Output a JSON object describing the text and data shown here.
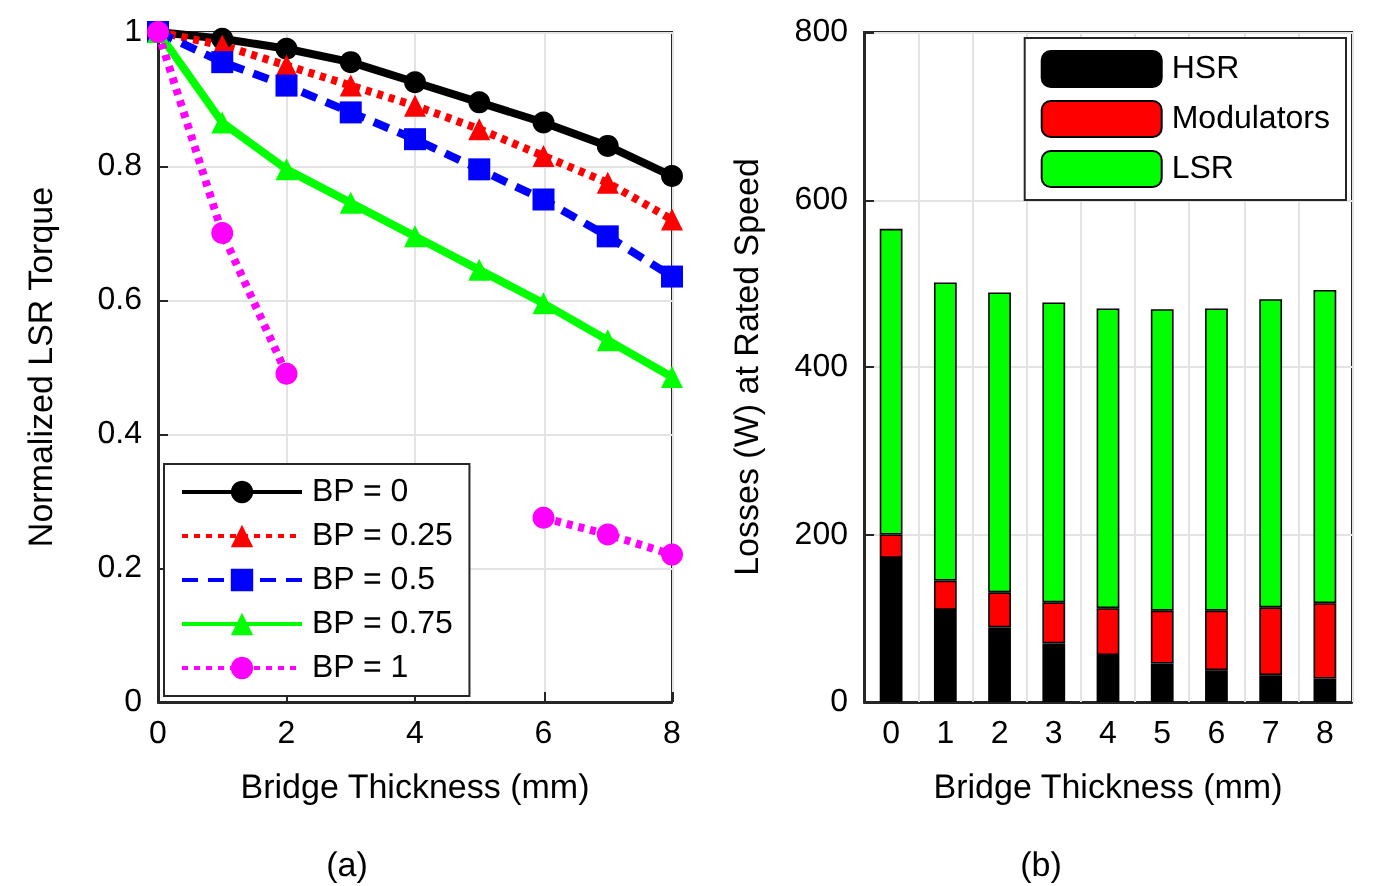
{
  "chart_data": [
    {
      "type": "line",
      "xlabel": "Bridge Thickness (mm)",
      "ylabel": "Normalized LSR Torque",
      "annotations": [
        "(a)"
      ],
      "x": [
        0,
        1,
        2,
        3,
        4,
        5,
        6,
        7,
        8
      ],
      "xlim": [
        0,
        8
      ],
      "xticks": [
        0,
        2,
        4,
        6,
        8
      ],
      "ylim": [
        0,
        1
      ],
      "yticks": [
        0,
        0.2,
        0.4,
        0.6,
        0.8,
        1
      ],
      "grid": true,
      "legend": "bottom left",
      "series": [
        {
          "name": "BP = 0",
          "color": "#000000",
          "marker": "circle",
          "line_style": "solid",
          "values": [
            1,
            0.99,
            0.975,
            0.955,
            0.925,
            0.895,
            0.865,
            0.83,
            0.785
          ]
        },
        {
          "name": "BP = 0.25",
          "color": "#ff0000",
          "marker": "triangle",
          "line_style": "dotted",
          "values": [
            1,
            0.98,
            0.95,
            0.92,
            0.89,
            0.855,
            0.815,
            0.775,
            0.72
          ]
        },
        {
          "name": "BP = 0.5",
          "color": "#0000ff",
          "marker": "square",
          "line_style": "dashed",
          "values": [
            1,
            0.955,
            0.92,
            0.88,
            0.84,
            0.795,
            0.75,
            0.695,
            0.635
          ]
        },
        {
          "name": "BP = 0.75",
          "color": "#00ff00",
          "marker": "triangle",
          "line_style": "solid",
          "values": [
            1,
            0.865,
            0.795,
            0.745,
            0.695,
            0.645,
            0.595,
            0.54,
            0.485
          ]
        },
        {
          "name": "BP = 1",
          "color": "#ff00ff",
          "marker": "circle",
          "line_style": "dotted",
          "values": [
            1,
            0.7,
            0.49,
            null,
            null,
            null,
            0.275,
            0.25,
            0.22
          ]
        }
      ]
    },
    {
      "type": "bar",
      "stacked": true,
      "xlabel": "Bridge Thickness (mm)",
      "ylabel": "Losses (W) at Rated Speed",
      "annotations": [
        "(b)"
      ],
      "categories": [
        "0",
        "1",
        "2",
        "3",
        "4",
        "5",
        "6",
        "7",
        "8"
      ],
      "ylim": [
        0,
        800
      ],
      "yticks": [
        0,
        200,
        400,
        600,
        800
      ],
      "grid": true,
      "legend": "top right",
      "series": [
        {
          "name": "HSR",
          "color": "#000000",
          "values": [
            172,
            110,
            89,
            70,
            56,
            46,
            38,
            32,
            28
          ]
        },
        {
          "name": "Modulators",
          "color": "#ff0000",
          "values": [
            28,
            35,
            42,
            49,
            56,
            63,
            71,
            81,
            90
          ]
        },
        {
          "name": "LSR",
          "color": "#00ff00",
          "values": [
            365,
            356,
            358,
            358,
            358,
            360,
            361,
            368,
            374
          ]
        }
      ]
    }
  ]
}
